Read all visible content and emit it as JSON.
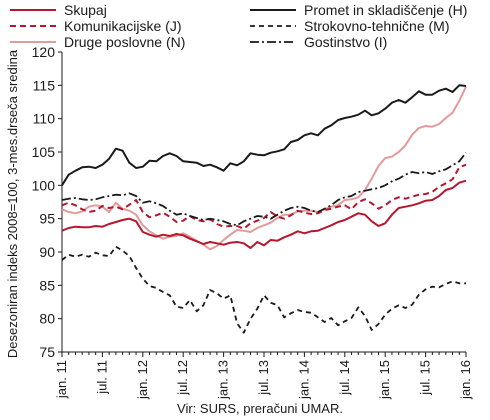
{
  "chart_data": {
    "type": "line",
    "title": "",
    "xlabel": "",
    "ylabel": "Desezoniran indeks 2008=100, 3-mes.drseča sredina",
    "source": "Vir: SURS, preračuni UMAR.",
    "ylim": [
      75,
      120
    ],
    "yticks": [
      75,
      80,
      85,
      90,
      95,
      100,
      105,
      110,
      115,
      120
    ],
    "x_tick_labels": [
      "jan. 11",
      "jul. 11",
      "jan. 12",
      "jul. 12",
      "jan. 13",
      "jul. 13",
      "jan. 14",
      "jul. 14",
      "jan. 15",
      "jul. 15",
      "jan. 16"
    ],
    "x": [
      "jan. 11",
      "feb. 11",
      "mar. 11",
      "apr. 11",
      "maj 11",
      "jun. 11",
      "jul. 11",
      "avg. 11",
      "sep. 11",
      "okt. 11",
      "nov. 11",
      "dec. 11",
      "jan. 12",
      "feb. 12",
      "mar. 12",
      "apr. 12",
      "maj 12",
      "jun. 12",
      "jul. 12",
      "avg. 12",
      "sep. 12",
      "okt. 12",
      "nov. 12",
      "dec. 12",
      "jan. 13",
      "feb. 13",
      "mar. 13",
      "apr. 13",
      "maj 13",
      "jun. 13",
      "jul. 13",
      "avg. 13",
      "sep. 13",
      "okt. 13",
      "nov. 13",
      "dec. 13",
      "jan. 14",
      "feb. 14",
      "mar. 14",
      "apr. 14",
      "maj 14",
      "jun. 14",
      "jul. 14",
      "avg. 14",
      "sep. 14",
      "okt. 14",
      "nov. 14",
      "dec. 14",
      "jan. 15",
      "feb. 15",
      "mar. 15",
      "apr. 15",
      "maj 15",
      "jun. 15",
      "jul. 15",
      "avg. 15",
      "sep. 15",
      "okt. 15",
      "nov. 15",
      "dec. 15",
      "jan. 16"
    ],
    "legend": {
      "placement": "top",
      "columns": 2
    },
    "grid": false,
    "series": [
      {
        "name": "Skupaj",
        "color": "#b5172e",
        "dash": "solid",
        "width": 2,
        "values": [
          93.2,
          93.6,
          93.8,
          93.7,
          93.7,
          93.9,
          93.8,
          94.2,
          94.5,
          94.8,
          95.0,
          94.6,
          93.0,
          92.6,
          92.3,
          92.6,
          92.4,
          92.7,
          92.5,
          92.0,
          91.6,
          91.2,
          91.5,
          91.3,
          91.1,
          91.4,
          91.5,
          91.3,
          90.6,
          91.5,
          91.0,
          91.8,
          91.7,
          92.2,
          92.6,
          93.1,
          92.8,
          93.1,
          93.2,
          93.6,
          94.0,
          94.5,
          94.8,
          95.3,
          95.8,
          95.6,
          94.6,
          93.9,
          94.3,
          95.6,
          96.6,
          96.8,
          97.0,
          97.3,
          97.7,
          97.8,
          98.4,
          99.3,
          99.6,
          100.4,
          100.7
        ]
      },
      {
        "name": "Komunikacijske (J)",
        "color": "#b5172e",
        "dash": "6,4",
        "width": 2,
        "values": [
          97.0,
          97.4,
          97.0,
          96.4,
          96.0,
          96.2,
          96.9,
          96.6,
          96.8,
          96.4,
          97.1,
          97.8,
          96.0,
          95.2,
          95.5,
          95.9,
          95.3,
          94.5,
          94.7,
          95.4,
          94.8,
          94.6,
          94.9,
          94.2,
          93.8,
          93.9,
          93.9,
          93.5,
          94.3,
          94.7,
          95.1,
          96.0,
          95.3,
          95.0,
          95.5,
          96.2,
          95.9,
          95.7,
          95.8,
          96.3,
          96.5,
          96.8,
          97.0,
          96.4,
          97.5,
          97.9,
          97.3,
          96.5,
          97.0,
          97.8,
          98.2,
          98.0,
          98.3,
          98.6,
          98.7,
          99.0,
          99.8,
          100.3,
          100.9,
          102.7,
          103.1
        ]
      },
      {
        "name": "Druge poslovne (N)",
        "color": "#e59a9a",
        "dash": "solid",
        "width": 2,
        "values": [
          96.4,
          96.0,
          95.8,
          96.1,
          96.8,
          97.0,
          96.8,
          96.0,
          97.4,
          96.5,
          96.2,
          95.6,
          94.0,
          93.1,
          92.5,
          92.0,
          92.3,
          92.4,
          92.8,
          92.3,
          91.7,
          91.1,
          90.4,
          90.9,
          91.8,
          92.6,
          93.3,
          93.2,
          93.0,
          93.6,
          94.0,
          94.4,
          95.1,
          95.6,
          95.6,
          96.1,
          96.2,
          96.2,
          96.0,
          96.4,
          96.8,
          97.0,
          97.8,
          97.9,
          98.2,
          99.3,
          101.0,
          102.9,
          104.1,
          104.3,
          105.0,
          106.0,
          107.6,
          108.6,
          108.9,
          108.8,
          109.2,
          110.1,
          110.9,
          112.7,
          114.8
        ]
      },
      {
        "name": "Promet in skladiščenje (H)",
        "color": "#1a1a1a",
        "dash": "solid",
        "width": 2,
        "values": [
          100.0,
          101.6,
          102.2,
          102.7,
          102.8,
          102.6,
          103.1,
          104.0,
          105.5,
          105.2,
          103.4,
          102.6,
          102.8,
          103.7,
          103.6,
          104.4,
          104.8,
          104.4,
          103.6,
          103.5,
          103.4,
          102.9,
          103.1,
          102.7,
          102.2,
          103.3,
          103.0,
          103.6,
          104.8,
          104.6,
          104.5,
          104.9,
          105.1,
          105.4,
          106.5,
          106.8,
          107.5,
          107.8,
          107.5,
          108.5,
          109.0,
          109.8,
          110.1,
          110.3,
          110.6,
          111.2,
          110.5,
          110.8,
          111.5,
          112.4,
          112.8,
          112.4,
          113.2,
          114.1,
          113.6,
          113.6,
          114.2,
          114.5,
          114.0,
          115.0,
          114.9
        ]
      },
      {
        "name": "Strokovno-tehnične (M)",
        "color": "#1a1a1a",
        "dash": "5,4",
        "width": 1.8,
        "values": [
          88.8,
          89.6,
          89.3,
          89.6,
          89.3,
          89.9,
          89.5,
          89.4,
          90.8,
          90.2,
          89.4,
          87.6,
          86.0,
          84.9,
          84.6,
          84.0,
          83.5,
          81.8,
          81.6,
          82.8,
          81.1,
          82.0,
          84.3,
          83.8,
          83.0,
          83.5,
          79.3,
          77.9,
          80.0,
          81.5,
          83.5,
          82.4,
          82.0,
          80.2,
          80.8,
          81.3,
          81.0,
          80.9,
          80.2,
          79.5,
          80.1,
          79.0,
          79.6,
          80.1,
          81.7,
          80.4,
          78.3,
          79.2,
          80.6,
          81.5,
          82.0,
          81.6,
          82.1,
          83.6,
          84.4,
          84.8,
          84.7,
          85.2,
          85.6,
          85.3,
          85.3
        ]
      },
      {
        "name": "Gostinstvo (I)",
        "color": "#1a1a1a",
        "dash": "9,3,2,3",
        "width": 1.8,
        "values": [
          97.8,
          98.0,
          98.1,
          97.9,
          97.8,
          97.9,
          98.2,
          98.4,
          98.6,
          98.5,
          98.8,
          98.4,
          97.4,
          97.6,
          97.3,
          96.9,
          96.2,
          95.6,
          95.8,
          95.4,
          95.1,
          94.8,
          95.0,
          94.8,
          94.6,
          94.2,
          94.0,
          94.6,
          95.0,
          95.4,
          95.3,
          95.0,
          95.6,
          96.2,
          96.6,
          96.8,
          96.6,
          96.2,
          96.0,
          96.5,
          97.0,
          97.8,
          98.2,
          98.4,
          99.0,
          99.2,
          99.4,
          99.6,
          100.0,
          100.6,
          101.0,
          101.6,
          102.0,
          101.8,
          102.0,
          101.7,
          102.1,
          102.4,
          103.0,
          103.6,
          104.9
        ]
      }
    ]
  }
}
